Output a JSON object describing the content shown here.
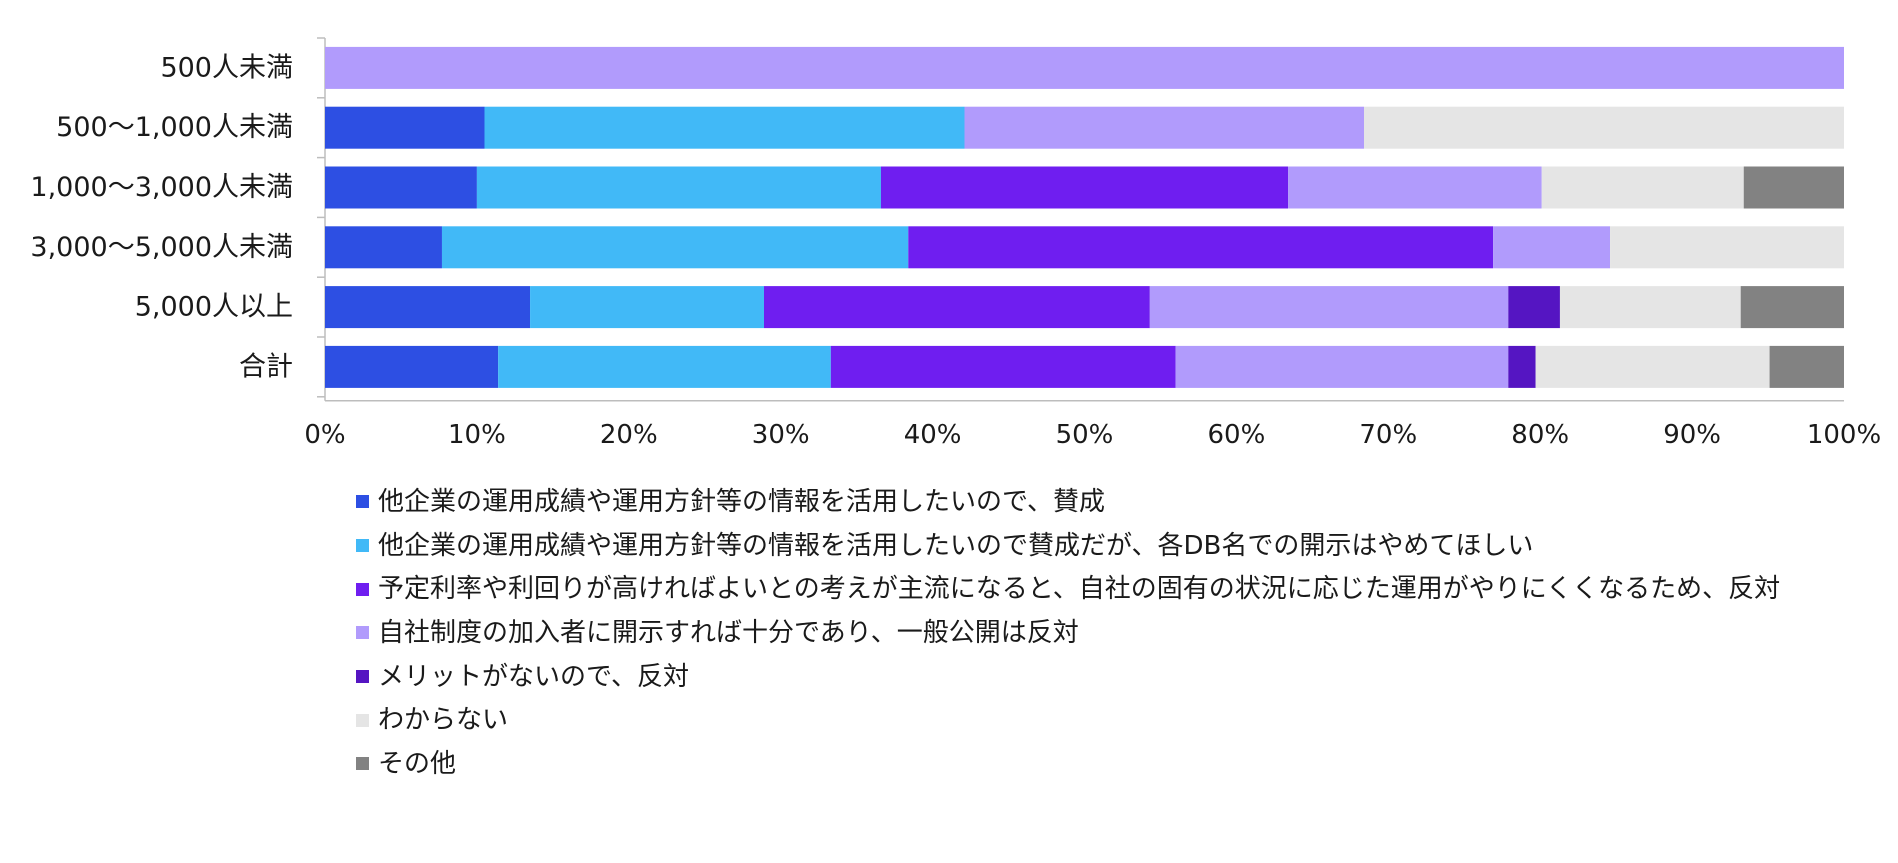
{
  "chart_data": {
    "type": "bar",
    "orientation": "horizontal",
    "stacked": true,
    "normalized": true,
    "categories": [
      "500人未満",
      "500〜1,000人未満",
      "1,000〜3,000人未満",
      "3,000〜5,000人未満",
      "5,000人以上",
      "合計"
    ],
    "series": [
      {
        "name": "他企業の運用成績や運用方針等の情報を活用したいので、賛成",
        "color": "#2d4fe3",
        "values": [
          0,
          10.5,
          10.0,
          7.7,
          13.5,
          11.4
        ]
      },
      {
        "name": "他企業の運用成績や運用方針等の情報を活用したいので賛成だが、各DB名での開示はやめてほしい",
        "color": "#41b9f7",
        "values": [
          0,
          31.6,
          26.6,
          30.7,
          15.4,
          21.9
        ]
      },
      {
        "name": "予定利率や利回りが高ければよいとの考えが主流になると、自社の固有の状況に応じた運用がやりにくくなるため、反対",
        "color": "#6f1ef0",
        "values": [
          0,
          0,
          26.8,
          38.5,
          25.4,
          22.7
        ]
      },
      {
        "name": "自社制度の加入者に開示すれば十分であり、一般公開は反対",
        "color": "#b19bfc",
        "values": [
          100,
          26.3,
          16.7,
          7.7,
          23.6,
          21.9
        ]
      },
      {
        "name": "メリットがないので、反対",
        "color": "#5515c2",
        "values": [
          0,
          0,
          0,
          0,
          3.4,
          1.8
        ]
      },
      {
        "name": "わからない",
        "color": "#e5e5e5",
        "values": [
          0,
          31.6,
          13.3,
          15.4,
          11.9,
          15.4
        ]
      },
      {
        "name": "その他",
        "color": "#828282",
        "values": [
          0,
          0,
          6.6,
          0,
          6.8,
          4.9
        ]
      }
    ],
    "xlim": [
      0,
      100
    ],
    "x_ticks": [
      "0%",
      "10%",
      "20%",
      "30%",
      "40%",
      "50%",
      "60%",
      "70%",
      "80%",
      "90%",
      "100%"
    ],
    "legend_position": "bottom",
    "grid": false
  }
}
